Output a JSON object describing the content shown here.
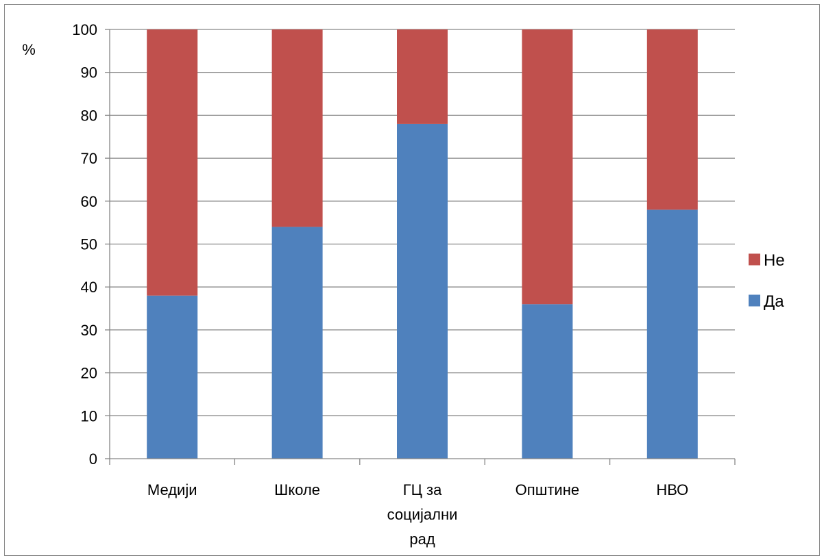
{
  "chart_data": {
    "type": "bar",
    "stacked": true,
    "categories": [
      [
        "Медији"
      ],
      [
        "Школе"
      ],
      [
        "ГЦ за",
        "социјални",
        "рад"
      ],
      [
        "Општине"
      ],
      [
        "НВО"
      ]
    ],
    "series": [
      {
        "name": "Да",
        "color": "#4F81BD",
        "values": [
          38,
          54,
          78,
          36,
          58
        ]
      },
      {
        "name": "Не",
        "color": "#C0504D",
        "values": [
          62,
          46,
          22,
          64,
          42
        ]
      }
    ],
    "ylabel": "%",
    "ylim": [
      0,
      100
    ],
    "yticks": [
      0,
      10,
      20,
      30,
      40,
      50,
      60,
      70,
      80,
      90,
      100
    ],
    "grid": true,
    "legend": {
      "position": "right",
      "order": [
        "Не",
        "Да"
      ]
    }
  }
}
